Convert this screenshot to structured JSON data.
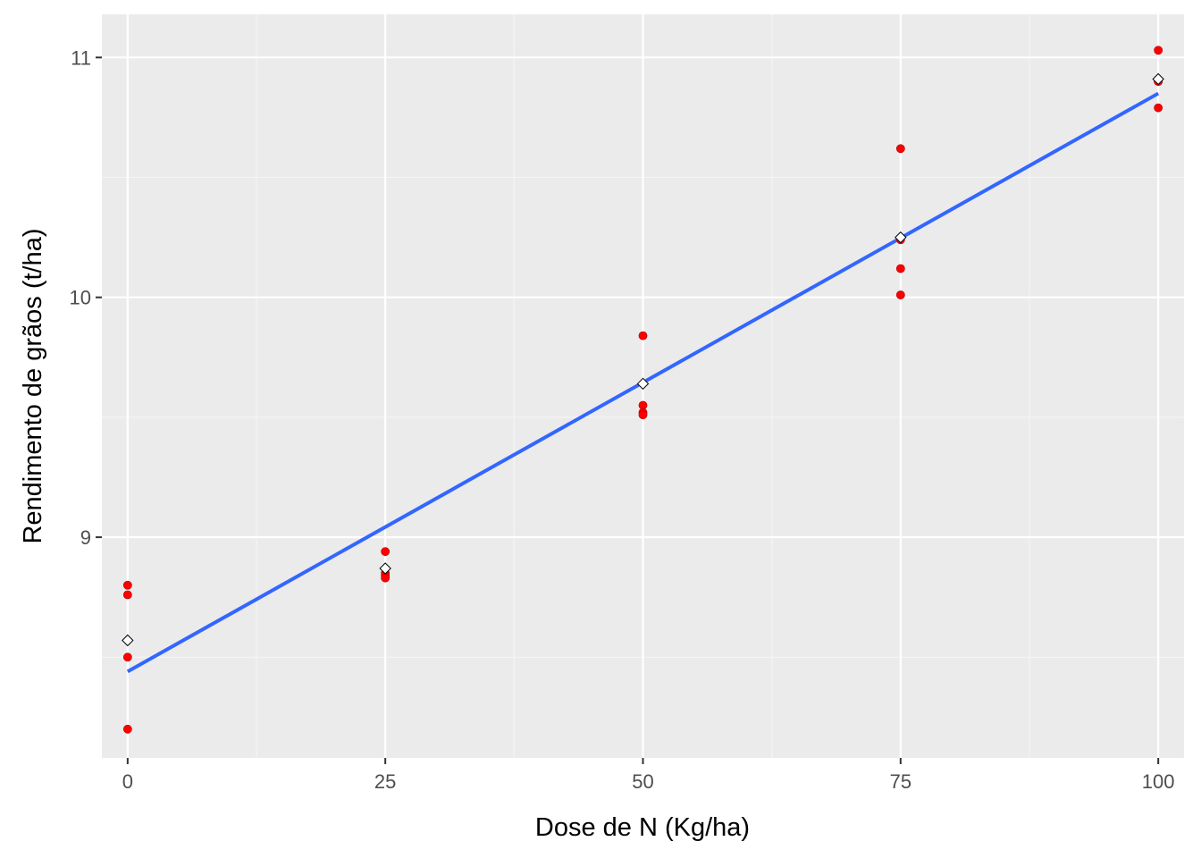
{
  "chart_data": {
    "type": "scatter",
    "title": "",
    "xlabel": "Dose de N (Kg/ha)",
    "ylabel": "Rendimento de grãos (t/ha)",
    "xlim": [
      -2.5,
      102.5
    ],
    "ylim": [
      8.08,
      11.18
    ],
    "xticks": [
      0,
      25,
      50,
      75,
      100
    ],
    "xtick_labels": [
      "0",
      "25",
      "50",
      "75",
      "100"
    ],
    "yticks": [
      9,
      10,
      11
    ],
    "ytick_labels": [
      "9",
      "10",
      "11"
    ],
    "grid": true,
    "legend": "none",
    "colors": {
      "panel": "#EBEBEB",
      "grid_major": "#FFFFFF",
      "grid_minor": "#F5F5F5",
      "points": "#FF0000",
      "means": "#FFFFFF",
      "fit_line": "#3366FF"
    },
    "series": [
      {
        "kind": "points",
        "x": [
          0,
          0,
          0,
          0,
          25,
          25,
          25,
          25,
          50,
          50,
          50,
          50,
          75,
          75,
          75,
          75,
          100,
          100,
          100,
          100
        ],
        "y": [
          8.8,
          8.76,
          8.5,
          8.2,
          8.94,
          8.85,
          8.84,
          8.83,
          9.84,
          9.55,
          9.52,
          9.51,
          10.62,
          10.24,
          10.12,
          10.01,
          11.03,
          10.9,
          10.9,
          10.79
        ]
      },
      {
        "kind": "means",
        "x": [
          0,
          25,
          50,
          75,
          100
        ],
        "y": [
          8.57,
          8.87,
          9.64,
          10.25,
          10.91
        ]
      },
      {
        "kind": "fit_line",
        "x": [
          0,
          100
        ],
        "y": [
          8.44,
          10.85
        ]
      }
    ]
  }
}
